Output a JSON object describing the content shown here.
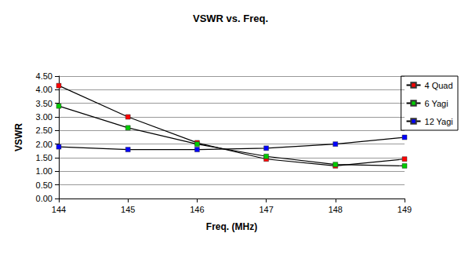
{
  "chart_data": {
    "type": "line",
    "title": "VSWR vs. Freq.",
    "x_label": "Freq. (MHz)",
    "y_label": "VSWR",
    "x": [
      144,
      145,
      146,
      147,
      148,
      149
    ],
    "series": [
      {
        "name": "4 Quad",
        "color": "#ff0000",
        "marker": "square",
        "values": [
          4.15,
          3.0,
          2.05,
          1.45,
          1.2,
          1.45
        ]
      },
      {
        "name": "6 Yagi",
        "color": "#00cc00",
        "marker": "square",
        "values": [
          3.4,
          2.6,
          2.0,
          1.55,
          1.25,
          1.2
        ]
      },
      {
        "name": "12 Yagi",
        "color": "#0000ff",
        "marker": "square",
        "values": [
          1.9,
          1.8,
          1.8,
          1.85,
          2.0,
          2.25
        ]
      }
    ],
    "xlim": [
      144,
      149
    ],
    "xticks": [
      144,
      145,
      146,
      147,
      148,
      149
    ],
    "ylim": [
      0,
      4.5
    ],
    "yticks": [
      {
        "value": 0,
        "label": "0.00"
      },
      {
        "value": 0.5,
        "label": "0.50"
      },
      {
        "value": 1,
        "label": "1.00"
      },
      {
        "value": 1.5,
        "label": "1.50"
      },
      {
        "value": 2,
        "label": "2.00"
      },
      {
        "value": 2.5,
        "label": "2.50"
      },
      {
        "value": 3,
        "label": "3.00"
      },
      {
        "value": 3.5,
        "label": "3.50"
      },
      {
        "value": 4,
        "label": "4.00"
      },
      {
        "value": 4.5,
        "label": "4.50"
      }
    ],
    "grid": true,
    "legend": "right"
  }
}
